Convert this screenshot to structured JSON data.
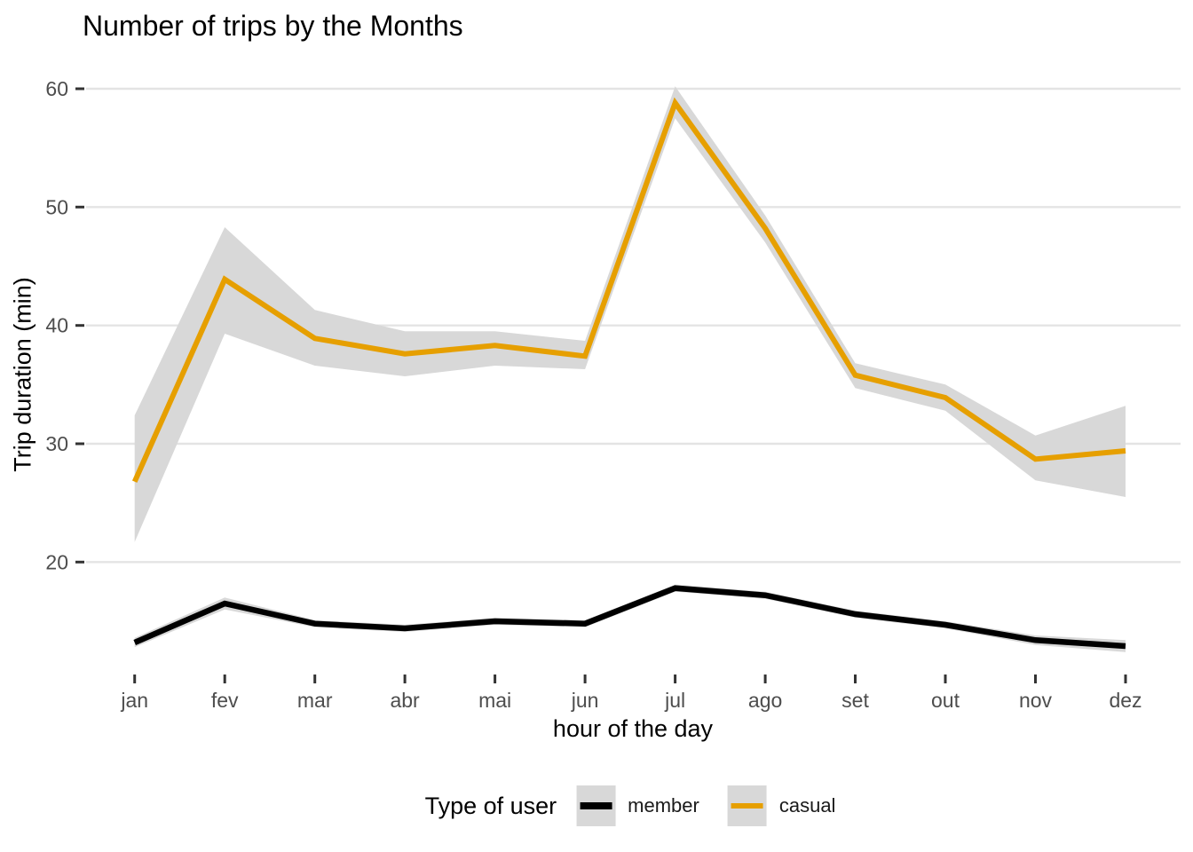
{
  "title": "Number of trips by the Months",
  "axes": {
    "x_title": "hour of the day",
    "y_title": "Trip duration (min)",
    "x_ticks": [
      "jan",
      "fev",
      "mar",
      "abr",
      "mai",
      "jun",
      "jul",
      "ago",
      "set",
      "out",
      "nov",
      "dez"
    ],
    "y_ticks": [
      20,
      30,
      40,
      50,
      60
    ]
  },
  "legend": {
    "title": "Type of user",
    "items": [
      {
        "label": "member",
        "color": "#000000"
      },
      {
        "label": "casual",
        "color": "#E69F00"
      }
    ]
  },
  "colors": {
    "member_line": "#000000",
    "casual_line": "#E69F00",
    "ribbon": "#d8d8d8",
    "gridline": "#e4e4e4",
    "tick_mark": "#333333",
    "tick_label": "#4d4d4d",
    "background": "#ffffff"
  },
  "chart_data": {
    "type": "line",
    "title": "Number of trips by the Months",
    "xlabel": "hour of the day",
    "ylabel": "Trip duration (min)",
    "categories": [
      "jan",
      "fev",
      "mar",
      "abr",
      "mai",
      "jun",
      "jul",
      "ago",
      "set",
      "out",
      "nov",
      "dez"
    ],
    "ylim": [
      11,
      61
    ],
    "yticks": [
      20,
      30,
      40,
      50,
      60
    ],
    "grid": "horizontal-major-only",
    "legend_position": "bottom",
    "series": [
      {
        "name": "member",
        "color": "#000000",
        "values": [
          13.2,
          16.5,
          14.8,
          14.4,
          15.0,
          14.8,
          17.8,
          17.2,
          15.6,
          14.7,
          13.4,
          12.9
        ],
        "ribbon_high": [
          13.6,
          17.0,
          15.1,
          14.7,
          15.3,
          15.1,
          18.1,
          17.5,
          15.9,
          15.0,
          13.8,
          13.4
        ],
        "ribbon_low": [
          12.8,
          16.0,
          14.5,
          14.1,
          14.7,
          14.5,
          17.5,
          16.9,
          15.3,
          14.4,
          13.0,
          12.4
        ]
      },
      {
        "name": "casual",
        "color": "#E69F00",
        "values": [
          26.8,
          43.9,
          38.9,
          37.6,
          38.3,
          37.4,
          58.8,
          48.2,
          35.8,
          33.9,
          28.7,
          29.4
        ],
        "ribbon_high": [
          32.4,
          48.3,
          41.3,
          39.5,
          39.5,
          38.7,
          60.2,
          49.3,
          36.8,
          35.0,
          30.7,
          33.2
        ],
        "ribbon_low": [
          21.7,
          39.3,
          36.6,
          35.7,
          36.6,
          36.3,
          57.5,
          47.0,
          34.7,
          32.8,
          26.9,
          25.5
        ]
      }
    ]
  }
}
